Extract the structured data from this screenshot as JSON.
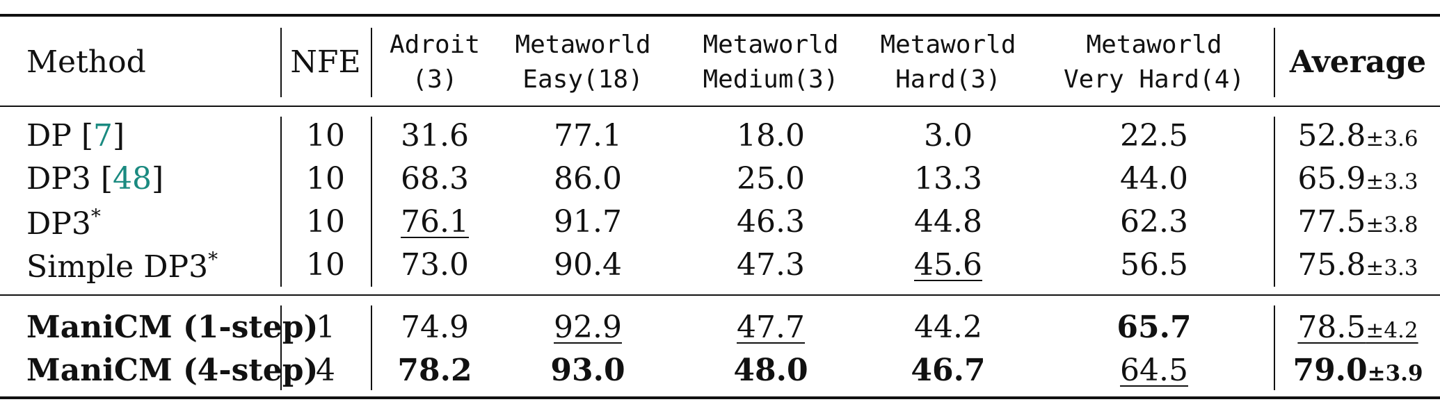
{
  "table": {
    "headers": {
      "method": "Method",
      "nfe": "NFE",
      "adroit": [
        "Adroit",
        "(3)"
      ],
      "mw_easy": [
        "Metaworld",
        "Easy(18)"
      ],
      "mw_medium": [
        "Metaworld",
        "Medium(3)"
      ],
      "mw_hard": [
        "Metaworld",
        "Hard(3)"
      ],
      "mw_vhard": [
        "Metaworld",
        "Very Hard(4)"
      ],
      "average": "Average"
    },
    "rows": [
      {
        "method": "DP",
        "cite": "7",
        "nfe": "10",
        "adroit": "31.6",
        "easy": "77.1",
        "medium": "18.0",
        "hard": "3.0",
        "vhard": "22.5",
        "avg": "52.8",
        "std": "±3.6"
      },
      {
        "method": "DP3",
        "cite": "48",
        "nfe": "10",
        "adroit": "68.3",
        "easy": "86.0",
        "medium": "25.0",
        "hard": "13.3",
        "vhard": "44.0",
        "avg": "65.9",
        "std": "±3.3"
      },
      {
        "method": "DP3",
        "sup": "*",
        "nfe": "10",
        "adroit": "76.1",
        "easy": "91.7",
        "medium": "46.3",
        "hard": "44.8",
        "vhard": "62.3",
        "avg": "77.5",
        "std": "±3.8"
      },
      {
        "method": "Simple DP3",
        "sup": "*",
        "nfe": "10",
        "adroit": "73.0",
        "easy": "90.4",
        "medium": "47.3",
        "hard": "45.6",
        "vhard": "56.5",
        "avg": "75.8",
        "std": "±3.3"
      },
      {
        "method": "ManiCM (1-step)",
        "nfe": "1",
        "adroit": "74.9",
        "easy": "92.9",
        "medium": "47.7",
        "hard": "44.2",
        "vhard": "65.7",
        "avg": "78.5",
        "std": "±4.2"
      },
      {
        "method": "ManiCM (4-step)",
        "nfe": "4",
        "adroit": "78.2",
        "easy": "93.0",
        "medium": "48.0",
        "hard": "46.7",
        "vhard": "64.5",
        "avg": "79.0",
        "std": "±3.9"
      }
    ]
  }
}
